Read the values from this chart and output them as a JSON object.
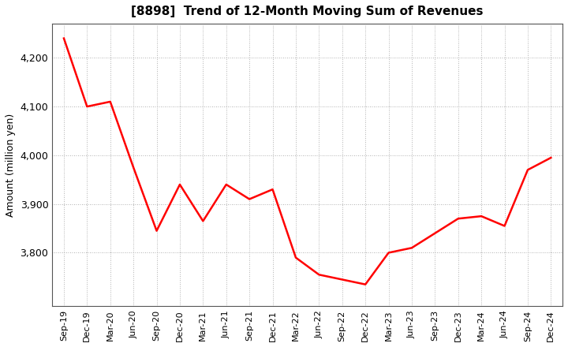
{
  "title": "[8898]  Trend of 12-Month Moving Sum of Revenues",
  "ylabel": "Amount (million yen)",
  "line_color": "#FF0000",
  "line_width": 1.8,
  "background_color": "#FFFFFF",
  "grid_color": "#999999",
  "ylim": [
    3690,
    4270
  ],
  "yticks": [
    3800,
    3900,
    4000,
    4100,
    4200
  ],
  "x_labels": [
    "Sep-19",
    "Dec-19",
    "Mar-20",
    "Jun-20",
    "Sep-20",
    "Dec-20",
    "Mar-21",
    "Jun-21",
    "Sep-21",
    "Dec-21",
    "Mar-22",
    "Jun-22",
    "Sep-22",
    "Dec-22",
    "Mar-23",
    "Jun-23",
    "Sep-23",
    "Dec-23",
    "Mar-24",
    "Jun-24",
    "Sep-24",
    "Dec-24"
  ],
  "values": [
    4240,
    4100,
    4110,
    3975,
    3845,
    3940,
    3865,
    3940,
    3910,
    3930,
    3790,
    3755,
    3745,
    3735,
    3800,
    3810,
    3840,
    3870,
    3875,
    3855,
    3970,
    3995
  ]
}
